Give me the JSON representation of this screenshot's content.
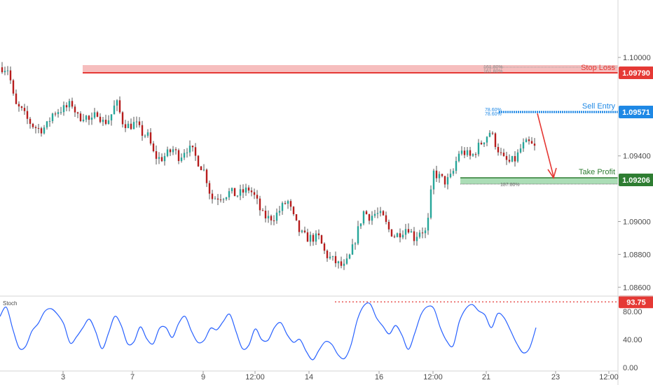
{
  "chart_data": [
    {
      "type": "candlestick",
      "title": "",
      "y_ticks": [
        "1.10000",
        "1.09400",
        "1.09000",
        "1.08800",
        "1.08600"
      ],
      "ylim": [
        1.0855,
        1.1035
      ],
      "x_ticks": [
        "3",
        "7",
        "9",
        "12:00",
        "14",
        "16",
        "12:00",
        "21",
        "23",
        "12:00"
      ],
      "levels": [
        {
          "id": "stop_loss",
          "label": "Stop Loss",
          "value": 1.0979,
          "price_tag": "1.09790",
          "color": "#e53935",
          "fib_label": "161.80%",
          "fib_label2": "161.80%"
        },
        {
          "id": "sell_entry",
          "label": "Sell Entry",
          "value": 1.09571,
          "price_tag": "1.09571",
          "color": "#1e88e5",
          "fib_label": "78.60%",
          "fib_label2": "78.60%"
        },
        {
          "id": "take_profit",
          "label": "Take Profit",
          "value": 1.09206,
          "price_tag": "1.09206",
          "color": "#2e7d32",
          "fib_label": "187.80%"
        }
      ],
      "anchors": [
        "1.0994",
        "1.0993",
        "1.0971",
        "1.0968",
        "1.0962",
        "1.0958",
        "1.0956",
        "1.0958",
        "1.0966",
        "1.0968",
        "1.0969",
        "1.0972",
        "1.0963",
        "1.0965",
        "1.0960",
        "1.0967",
        "1.0960",
        "1.0963",
        "1.0973",
        "1.0961",
        "1.0958",
        "1.0960",
        "1.0954",
        "1.0952",
        "1.0940",
        "1.0938",
        "1.0941",
        "1.0944",
        "1.0939",
        "1.0945",
        "1.0943",
        "1.0936",
        "1.0930",
        "1.0914",
        "1.0915",
        "1.0916",
        "1.0918",
        "1.0916",
        "1.0918",
        "1.0920",
        "1.0914",
        "1.0904",
        "1.0902",
        "1.0903",
        "1.0908",
        "1.0913",
        "1.0902",
        "1.0893",
        "1.0890",
        "1.0890",
        "1.0890",
        "1.0880",
        "1.0877",
        "1.0874",
        "1.0872",
        "1.0880",
        "1.0893",
        "1.0906",
        "1.0903",
        "1.0905",
        "1.0903",
        "1.0895",
        "1.0891",
        "1.0894",
        "1.0897",
        "1.0890",
        "1.0895",
        "1.0893",
        "1.0930",
        "1.0927",
        "1.0924",
        "1.0928",
        "1.0942",
        "1.0942",
        "1.0939",
        "1.0945",
        "1.0950",
        "1.0955",
        "1.0946",
        "1.0938",
        "1.0936",
        "1.0938",
        "1.0946",
        "1.0948",
        "1.0945"
      ],
      "stoch_panel": {
        "title": "Stoch",
        "y_ticks": [
          "80.00",
          "40.00",
          "0.00"
        ],
        "ylim": [
          -3,
          100
        ],
        "level_tag": "93.75",
        "level_value": 93.75,
        "line_color": "#2962ff",
        "level_color": "#e53935",
        "values": [
          73,
          86,
          55,
          28,
          30,
          52,
          63,
          80,
          84,
          76,
          62,
          35,
          44,
          57,
          69,
          51,
          27,
          49,
          73,
          60,
          34,
          37,
          58,
          41,
          34,
          56,
          57,
          43,
          63,
          73,
          52,
          36,
          39,
          56,
          54,
          66,
          76,
          51,
          27,
          32,
          55,
          40,
          39,
          57,
          64,
          47,
          36,
          40,
          23,
          11,
          25,
          37,
          33,
          18,
          13,
          32,
          68,
          88,
          91,
          71,
          59,
          48,
          60,
          46,
          26,
          49,
          76,
          87,
          84,
          57,
          38,
          31,
          66,
          84,
          90,
          81,
          75,
          57,
          77,
          71,
          53,
          34,
          21,
          28,
          57
        ]
      }
    }
  ]
}
